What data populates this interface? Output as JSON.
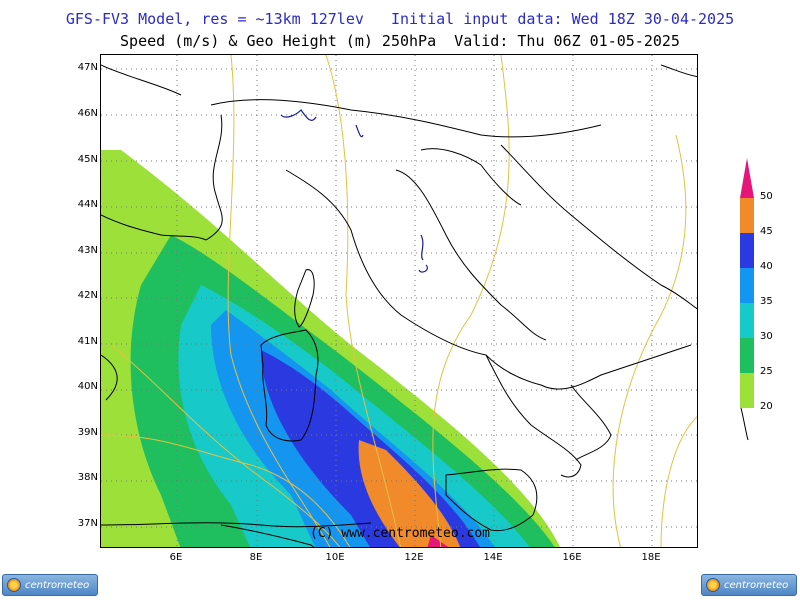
{
  "header": {
    "line1": "GFS-FV3 Model, res = ~13km 127lev   Initial input data: Wed 18Z 30-04-2025",
    "line2": "Speed (m/s) & Geo Height (m) 250hPa  Valid: Thu 06Z 01-05-2025"
  },
  "map": {
    "lat_labels": [
      "47N",
      "46N",
      "45N",
      "44N",
      "43N",
      "42N",
      "41N",
      "40N",
      "39N",
      "38N",
      "37N"
    ],
    "lon_labels": [
      "6E",
      "8E",
      "10E",
      "12E",
      "14E",
      "16E",
      "18E"
    ],
    "lon_range": [
      4.1,
      19.2
    ],
    "lat_range": [
      36.6,
      47.3
    ],
    "credit": "(C) www.centrometeo.com",
    "shading_colors": {
      "20-25": "#9ee03a",
      "25-30": "#1fbf5f",
      "30-35": "#17c9c9",
      "35-40": "#1496f0",
      "40-45": "#2a3ae0",
      "45-50": "#f08a2a",
      "50+": "#e6157a"
    },
    "contour_color": "#e6c040"
  },
  "legend": {
    "labels": [
      "50",
      "45",
      "40",
      "35",
      "30",
      "25",
      "20"
    ],
    "colors": [
      "#f08a2a",
      "#2a3ae0",
      "#1496f0",
      "#17c9c9",
      "#1fbf5f",
      "#9ee03a"
    ],
    "top_arrow_color": "#e6157a"
  },
  "logos": {
    "left_text": "centrometeo",
    "right_text": "centrometeo"
  }
}
